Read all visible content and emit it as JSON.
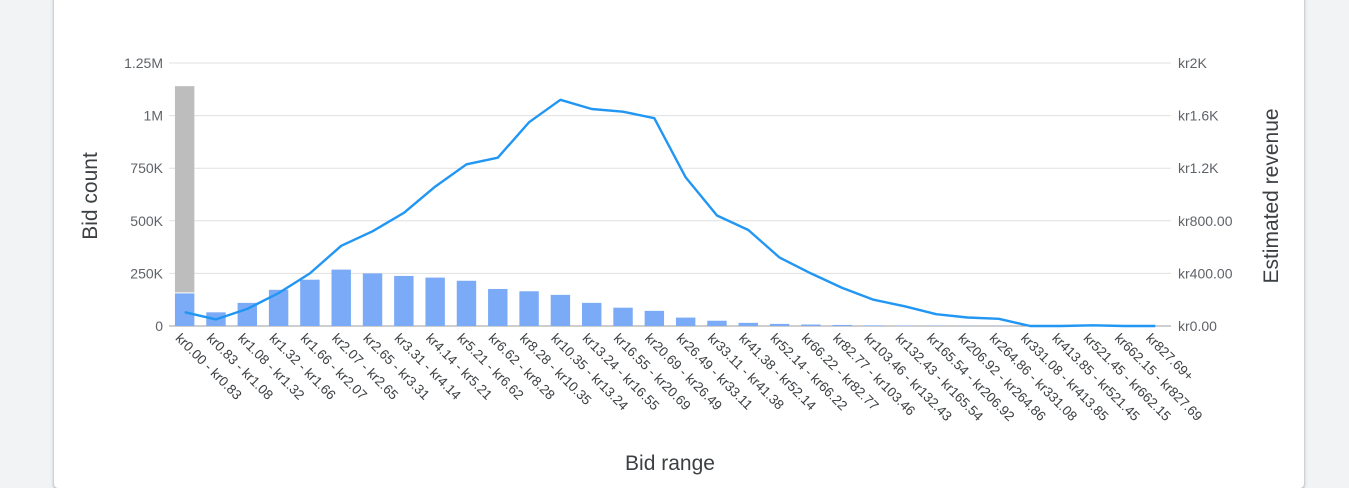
{
  "chart_data": {
    "type": "bar+line",
    "xlabel": "Bid range",
    "ylabel_left": "Bid count",
    "ylabel_right": "Estimated revenue",
    "y_left_ticks": [
      "0",
      "250K",
      "500K",
      "750K",
      "1M",
      "1.25M"
    ],
    "y_left_range": [
      0,
      1250000
    ],
    "y_right_ticks": [
      "kr0.00",
      "kr400.00",
      "kr800.00",
      "kr1.2K",
      "kr1.6K",
      "kr2K"
    ],
    "y_right_range": [
      0,
      2000
    ],
    "grid": true,
    "categories": [
      "kr0.00 - kr0.83",
      "kr0.83 - kr1.08",
      "kr1.08 - kr1.32",
      "kr1.32 - kr1.66",
      "kr1.66 - kr2.07",
      "kr2.07 - kr2.65",
      "kr2.65 - kr3.31",
      "kr3.31 - kr4.14",
      "kr4.14 - kr5.21",
      "kr5.21 - kr6.62",
      "kr6.62 - kr8.28",
      "kr8.28 - kr10.35",
      "kr10.35 - kr13.24",
      "kr13.24 - kr16.55",
      "kr16.55 - kr20.69",
      "kr20.69 - kr26.49",
      "kr26.49 - kr33.11",
      "kr33.11 - kr41.38",
      "kr41.38 - kr52.14",
      "kr52.14 - kr66.22",
      "kr66.22 - kr82.77",
      "kr82.77 - kr103.46",
      "kr103.46 - kr132.43",
      "kr132.43 - kr165.54",
      "kr165.54 - kr206.92",
      "kr206.92 - kr264.86",
      "kr264.86 - kr331.08",
      "kr331.08 - kr413.85",
      "kr413.85 - kr521.45",
      "kr521.45 - kr662.15",
      "kr662.15 - kr827.69",
      "kr827.69+"
    ],
    "series": [
      {
        "kind": "bar",
        "values": [
          155000,
          65000,
          110000,
          172000,
          220000,
          268000,
          250000,
          238000,
          230000,
          215000,
          176000,
          165000,
          148000,
          110000,
          87000,
          72000,
          40000,
          25000,
          15000,
          10000,
          7000,
          5000,
          3000,
          2000,
          1500,
          1000,
          1000,
          500,
          500,
          300,
          200,
          200
        ],
        "color": "#7baaf7"
      },
      {
        "kind": "bar-stack-top",
        "values": [
          985000,
          0,
          0,
          0,
          0,
          0,
          0,
          0,
          0,
          0,
          0,
          0,
          0,
          0,
          0,
          0,
          0,
          0,
          0,
          0,
          0,
          0,
          0,
          0,
          0,
          0,
          0,
          0,
          0,
          0,
          0,
          0
        ],
        "color": "#bdbdbd"
      },
      {
        "kind": "line",
        "axis": "right",
        "values": [
          105,
          50,
          130,
          250,
          400,
          610,
          720,
          860,
          1060,
          1230,
          1280,
          1550,
          1720,
          1650,
          1630,
          1580,
          1130,
          840,
          730,
          520,
          400,
          290,
          200,
          150,
          90,
          65,
          55,
          0,
          0,
          5,
          0,
          0
        ],
        "color": "#2196f3"
      }
    ]
  }
}
